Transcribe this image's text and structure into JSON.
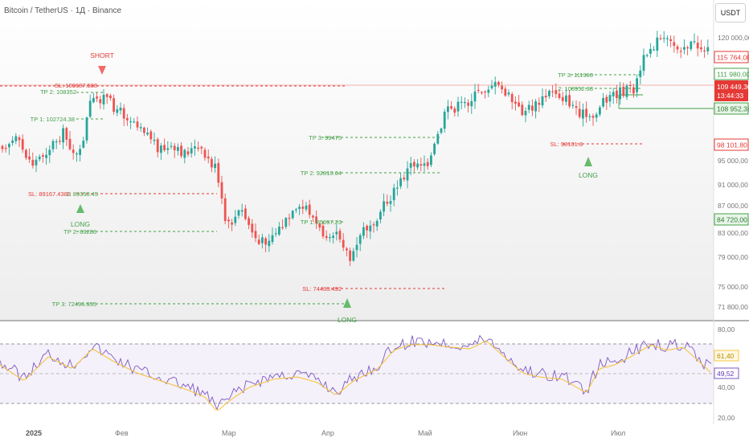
{
  "header": {
    "title": "Bitcoin / TetherUS · 1Д · Binance",
    "currency": "USDT"
  },
  "price_axis": [
    "120 000,00",
    "95 000,00",
    "91 000,00",
    "87 000,00",
    "83 000,00",
    "79 000,00",
    "75 000,00",
    "71 800,00"
  ],
  "price_tags": {
    "p115764": "115 764,08",
    "p111980": "111 980,00",
    "current_price": "109 449,30",
    "countdown": "13:44:33",
    "p108952": "108 952,38",
    "p98101": "98 101,80",
    "p84720": "84 720,00"
  },
  "rsi_axis": [
    "80,00",
    "40,00",
    "20,00"
  ],
  "rsi_tags": {
    "ma": "61,40",
    "rsi": "49,52"
  },
  "time_axis": [
    "2025",
    "Фев",
    "Мар",
    "Апр",
    "Май",
    "Июн",
    "Июл"
  ],
  "annotations": {
    "short_label": "SHORT",
    "long_label_1": "LONG",
    "long_label_2": "LONG",
    "long_label_3": "LONG",
    "sl_1": "SL: 109687.588",
    "tp2_1": "TP 2: 108352",
    "tp1_1": "TP 1: 102724.38",
    "sl_2": "SL: 89167.4388",
    "tp1_2": "1: 89358.45",
    "tp2_2": "TP 2: 83286",
    "tp3_2": "TP 3: 72496.955",
    "tp3_3": "TP 3: 99475",
    "tp2_3": "TP 2: 92810.64",
    "tp1_3": "TP 1: 85697.23",
    "sl_3": "SL: 74433.492",
    "tp3_4": "TP 3: 111980",
    "tp2_4": "2: 108952.38",
    "sl_4": "SL: 98101.8"
  },
  "colors": {
    "up": "#26a69a",
    "down": "#ef5350",
    "rsi": "#7e57c2",
    "rsi_ma": "#f5c542",
    "tp": "#43a047",
    "sl": "#e53935"
  }
}
